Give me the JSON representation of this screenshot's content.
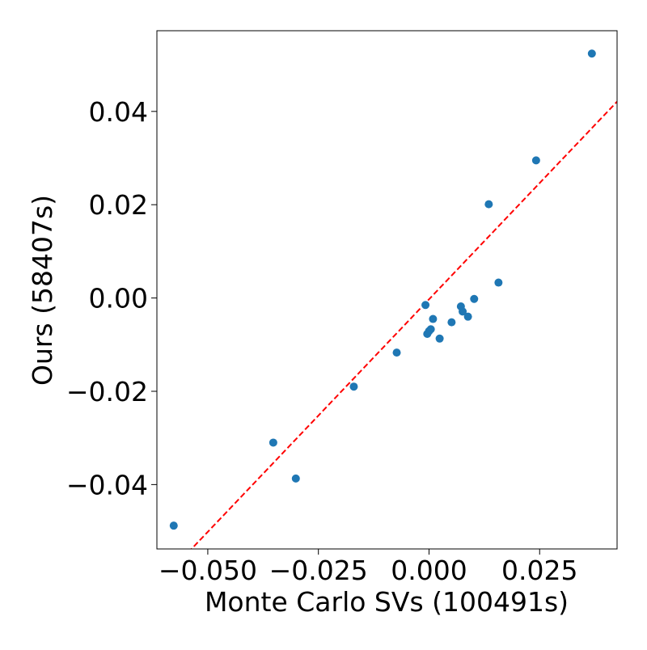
{
  "chart_data": {
    "type": "scatter",
    "title": "",
    "xlabel": "Monte Carlo SVs (100491s)",
    "ylabel": "Ours (58407s)",
    "xlim": [
      -0.0615,
      0.0425
    ],
    "ylim": [
      -0.0538,
      0.0573
    ],
    "xticks": [
      -0.05,
      -0.025,
      0.0,
      0.025
    ],
    "xtick_labels": [
      "−0.050",
      "−0.025",
      "0.000",
      "0.025"
    ],
    "yticks": [
      -0.04,
      -0.02,
      0.0,
      0.02,
      0.04
    ],
    "ytick_labels": [
      "−0.04",
      "−0.02",
      "0.00",
      "0.02",
      "0.04"
    ],
    "grid": false,
    "point_color": "#1f77b4",
    "reference_line": {
      "style": "dashed",
      "color": "#ff0000",
      "points": [
        [
          -0.0624,
          -0.0625
        ],
        [
          0.0425,
          0.0421
        ]
      ]
    },
    "points": [
      {
        "x": -0.0577,
        "y": -0.0488
      },
      {
        "x": -0.0352,
        "y": -0.031
      },
      {
        "x": -0.0301,
        "y": -0.0387
      },
      {
        "x": -0.017,
        "y": -0.019
      },
      {
        "x": -0.0073,
        "y": -0.0117
      },
      {
        "x": -0.0008,
        "y": -0.0015
      },
      {
        "x": -0.0004,
        "y": -0.0077
      },
      {
        "x": 0.0,
        "y": -0.0071
      },
      {
        "x": 0.0004,
        "y": -0.0067
      },
      {
        "x": 0.0009,
        "y": -0.0045
      },
      {
        "x": 0.0024,
        "y": -0.0087
      },
      {
        "x": 0.0051,
        "y": -0.0052
      },
      {
        "x": 0.0072,
        "y": -0.0018
      },
      {
        "x": 0.0076,
        "y": -0.0029
      },
      {
        "x": 0.0088,
        "y": -0.004
      },
      {
        "x": 0.0102,
        "y": -0.0002
      },
      {
        "x": 0.0135,
        "y": 0.0201
      },
      {
        "x": 0.0157,
        "y": 0.0033
      },
      {
        "x": 0.0242,
        "y": 0.0295
      },
      {
        "x": 0.0368,
        "y": 0.0524
      }
    ]
  }
}
